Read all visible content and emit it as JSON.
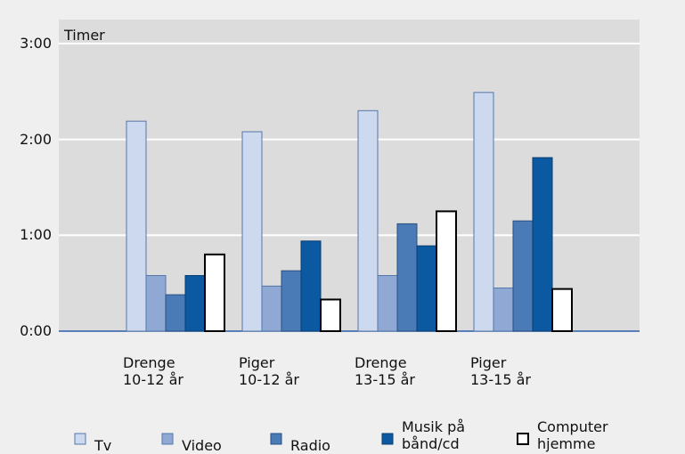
{
  "chart_data": {
    "type": "bar",
    "y_label": "Timer",
    "categories": [
      "Drenge\n10-12 år",
      "Piger\n 10-12 år",
      "Drenge\n 13-15 år",
      "Piger\n 13-15 år"
    ],
    "series": [
      {
        "name": "Tv",
        "color": "#cdd9ee",
        "values": [
          2.19,
          2.08,
          2.3,
          2.49
        ]
      },
      {
        "name": "Video",
        "color": "#8fa9d4",
        "values": [
          0.58,
          0.47,
          0.58,
          0.45
        ]
      },
      {
        "name": "Radio",
        "color": "#4a7bb7",
        "values": [
          0.38,
          0.63,
          1.12,
          1.15
        ]
      },
      {
        "name": "Musik på\nbånd/cd",
        "color": "#0b5aa1",
        "values": [
          0.58,
          0.94,
          0.89,
          1.81
        ]
      },
      {
        "name": "Computer\nhjemme",
        "color": "#ffffff",
        "values": [
          0.8,
          0.33,
          1.25,
          0.44
        ]
      }
    ],
    "ylim": [
      0,
      3.25
    ],
    "yticks": [
      {
        "value": 0,
        "label": "0:00"
      },
      {
        "value": 1,
        "label": "1:00"
      },
      {
        "value": 2,
        "label": "2:00"
      },
      {
        "value": 3,
        "label": "3:00"
      }
    ],
    "grid": true
  }
}
